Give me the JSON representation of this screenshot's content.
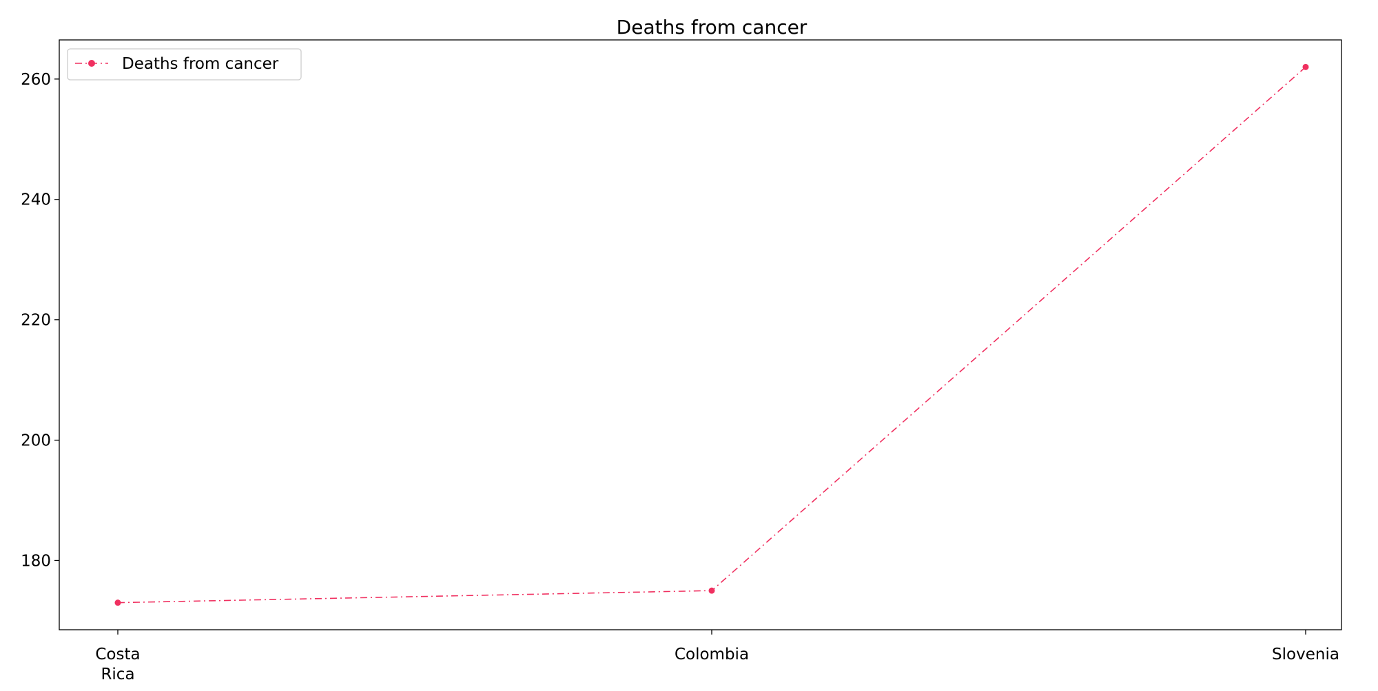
{
  "chart_data": {
    "type": "line",
    "title": "Deaths from cancer",
    "xlabel": "",
    "ylabel": "",
    "categories": [
      "Costa Rica",
      "Colombia",
      "Slovenia"
    ],
    "category_lines": [
      [
        "Costa",
        "Rica"
      ],
      [
        "Colombia"
      ],
      [
        "Slovenia"
      ]
    ],
    "series": [
      {
        "name": "Deaths from cancer",
        "values": [
          173,
          175,
          262
        ],
        "color": "#f03060",
        "line_style": "dash-dot",
        "marker": "circle"
      }
    ],
    "ylim": [
      168.5,
      266.5
    ],
    "yticks": [
      180,
      200,
      220,
      240,
      260
    ],
    "grid": false,
    "legend_position": "top-left"
  }
}
